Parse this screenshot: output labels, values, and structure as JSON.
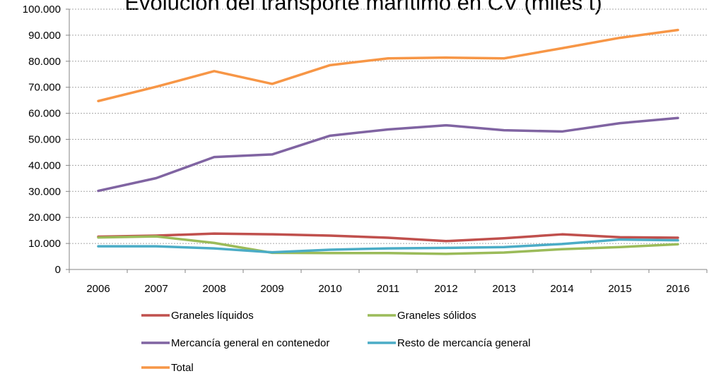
{
  "chart_data": {
    "type": "line",
    "title": "Evolución del transporte marítimo en CV (miles t)",
    "categories": [
      "2006",
      "2007",
      "2008",
      "2009",
      "2010",
      "2011",
      "2012",
      "2013",
      "2014",
      "2015",
      "2016"
    ],
    "series": [
      {
        "name": "Graneles líquidos",
        "color": "#c0504d",
        "values": [
          12600,
          13000,
          13800,
          13500,
          13000,
          12200,
          10900,
          12000,
          13500,
          12400,
          12200
        ]
      },
      {
        "name": "Graneles sólidos",
        "color": "#9bbb59",
        "values": [
          12300,
          12700,
          10200,
          6400,
          6300,
          6300,
          6000,
          6500,
          7800,
          8600,
          9700
        ]
      },
      {
        "name": "Mercancía general en contenedor",
        "color": "#8064a2",
        "values": [
          30200,
          35100,
          43200,
          44200,
          51400,
          53800,
          55400,
          53500,
          53000,
          56200,
          58200
        ]
      },
      {
        "name": "Resto de mercancía general",
        "color": "#4bacc6",
        "values": [
          8900,
          8900,
          8100,
          6600,
          7600,
          8100,
          8300,
          8600,
          9800,
          11500,
          11200
        ]
      },
      {
        "name": "Total",
        "color": "#f79646",
        "values": [
          64700,
          70200,
          76200,
          71300,
          78500,
          81100,
          81400,
          81100,
          85000,
          89000,
          92000
        ]
      }
    ],
    "ylim": [
      0,
      100000
    ],
    "yticks": [
      0,
      {
        "value": 10000,
        "label": "10.000"
      },
      {
        "value": 20000,
        "label": "20.000"
      },
      {
        "value": 30000,
        "label": "30.000"
      },
      {
        "value": 40000,
        "label": "40.000"
      },
      {
        "value": 50000,
        "label": "50.000"
      },
      {
        "value": 60000,
        "label": "60.000"
      },
      {
        "value": 70000,
        "label": "70.000"
      },
      {
        "value": 80000,
        "label": "80.000"
      },
      {
        "value": 90000,
        "label": "90.000"
      },
      {
        "value": 100000,
        "label": "100.000"
      }
    ],
    "grid": true,
    "legend": "bottom"
  }
}
